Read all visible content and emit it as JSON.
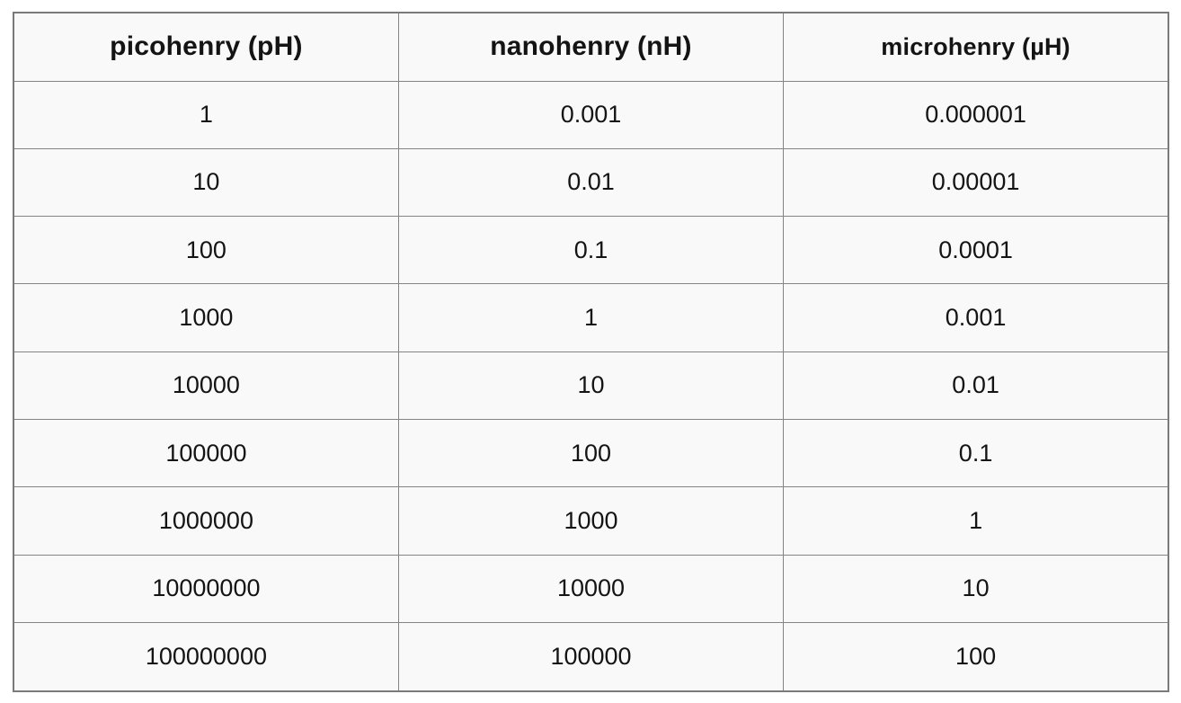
{
  "colors": {
    "page_background": "#ffffff",
    "cell_background": "#f9f9f9",
    "grid_line": "#848484",
    "outer_border": "#7a7a7a",
    "text": "#141414"
  },
  "chart_data": {
    "type": "table",
    "title": "",
    "columns": [
      "picohenry (pH)",
      "nanohenry (nH)",
      "microhenry (µH)"
    ],
    "rows": [
      [
        "1",
        "0.001",
        "0.000001"
      ],
      [
        "10",
        "0.01",
        "0.00001"
      ],
      [
        "100",
        "0.1",
        "0.0001"
      ],
      [
        "1000",
        "1",
        "0.001"
      ],
      [
        "10000",
        "10",
        "0.01"
      ],
      [
        "100000",
        "100",
        "0.1"
      ],
      [
        "1000000",
        "1000",
        "1"
      ],
      [
        "10000000",
        "10000",
        "10"
      ],
      [
        "100000000",
        "100000",
        "100"
      ]
    ]
  }
}
